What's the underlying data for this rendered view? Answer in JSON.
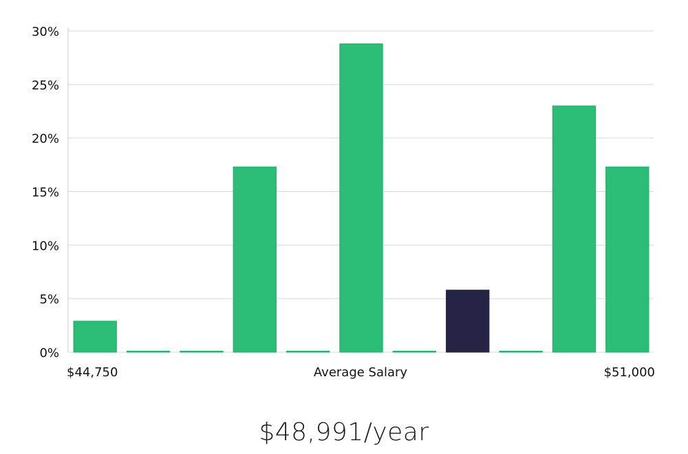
{
  "chart_data": {
    "type": "bar",
    "title": "",
    "xlabel": "Average Salary",
    "ylabel": "",
    "x_start_label": "$44,750",
    "x_end_label": "$51,000",
    "ylim": [
      0,
      30
    ],
    "yticks": [
      0,
      5,
      10,
      15,
      20,
      25,
      30
    ],
    "ytick_labels": [
      "0%",
      "5%",
      "10%",
      "15%",
      "20%",
      "25%",
      "30%"
    ],
    "values": [
      2.9,
      0,
      0,
      17.3,
      0,
      28.8,
      0,
      5.8,
      0,
      23.0,
      17.3
    ],
    "highlight_index": 7,
    "grid": true
  },
  "colors": {
    "bar": "#2bbd76",
    "bar_edge": "#1fb06a",
    "highlight": "#262444",
    "grid": "#d9d9d9",
    "axis": "#cccccc"
  },
  "summary": {
    "salary_text": "$48,991/year"
  }
}
